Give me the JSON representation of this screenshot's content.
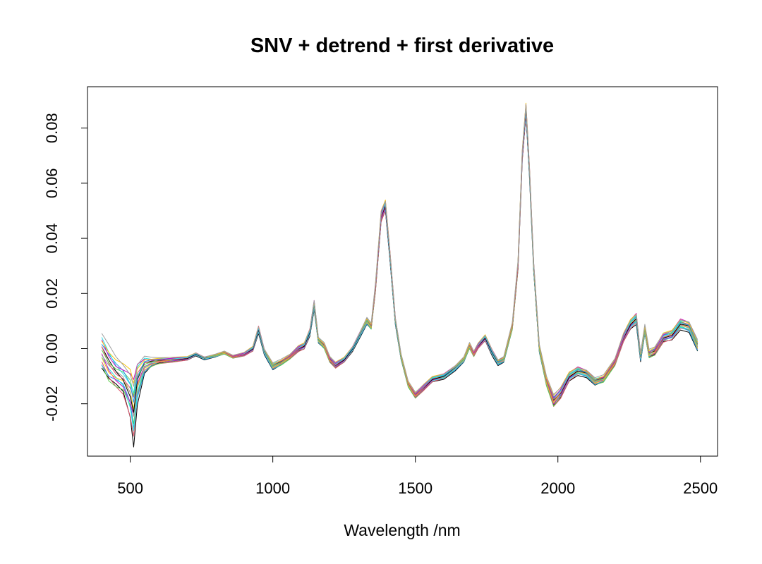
{
  "chart_data": {
    "type": "line",
    "title": "SNV + detrend + first derivative",
    "xlabel": "Wavelength /nm",
    "ylabel": "",
    "xlim": [
      350,
      2560
    ],
    "ylim": [
      -0.039,
      0.095
    ],
    "xticks": [
      {
        "value": 500,
        "label": "500"
      },
      {
        "value": 1000,
        "label": "1000"
      },
      {
        "value": 1500,
        "label": "1500"
      },
      {
        "value": 2000,
        "label": "2000"
      },
      {
        "value": 2500,
        "label": "2500"
      }
    ],
    "yticks": [
      {
        "value": -0.02,
        "label": "-0.02"
      },
      {
        "value": 0.0,
        "label": "0.00"
      },
      {
        "value": 0.02,
        "label": "0.02"
      },
      {
        "value": 0.04,
        "label": "0.04"
      },
      {
        "value": 0.06,
        "label": "0.06"
      },
      {
        "value": 0.08,
        "label": "0.08"
      }
    ],
    "grid": false,
    "series_colors": [
      "#000000",
      "#df536b",
      "#61d04f",
      "#2297e6",
      "#28e2e5",
      "#cd0bbc",
      "#f5c710",
      "#9e9e9e"
    ],
    "series_count": 16,
    "x": [
      400,
      425,
      450,
      475,
      500,
      512,
      525,
      550,
      575,
      600,
      650,
      700,
      730,
      760,
      800,
      830,
      860,
      900,
      930,
      950,
      970,
      1000,
      1030,
      1060,
      1090,
      1110,
      1130,
      1145,
      1160,
      1180,
      1200,
      1220,
      1250,
      1280,
      1310,
      1330,
      1345,
      1360,
      1380,
      1395,
      1410,
      1430,
      1450,
      1475,
      1500,
      1530,
      1560,
      1600,
      1640,
      1670,
      1690,
      1705,
      1720,
      1745,
      1770,
      1790,
      1810,
      1840,
      1860,
      1875,
      1888,
      1900,
      1915,
      1935,
      1960,
      1985,
      2010,
      2040,
      2070,
      2100,
      2130,
      2160,
      2200,
      2230,
      2255,
      2275,
      2290,
      2305,
      2320,
      2340,
      2370,
      2400,
      2430,
      2460,
      2490
    ],
    "mean_y": [
      -0.001,
      -0.006,
      -0.009,
      -0.011,
      -0.016,
      -0.022,
      -0.012,
      -0.006,
      -0.005,
      -0.0045,
      -0.004,
      -0.0035,
      -0.002,
      -0.0035,
      -0.0025,
      -0.0015,
      -0.003,
      -0.002,
      0.0,
      0.007,
      -0.001,
      -0.0065,
      -0.005,
      -0.003,
      0.0,
      0.001,
      0.006,
      0.016,
      0.003,
      0.001,
      -0.004,
      -0.006,
      -0.004,
      0.0,
      0.006,
      0.01,
      0.008,
      0.022,
      0.048,
      0.052,
      0.035,
      0.01,
      -0.003,
      -0.013,
      -0.017,
      -0.014,
      -0.011,
      -0.01,
      -0.007,
      -0.004,
      0.001,
      -0.002,
      0.001,
      0.004,
      -0.0015,
      -0.005,
      -0.004,
      0.008,
      0.03,
      0.07,
      0.087,
      0.065,
      0.03,
      0.0,
      -0.012,
      -0.019,
      -0.016,
      -0.01,
      -0.008,
      -0.009,
      -0.012,
      -0.011,
      -0.005,
      0.004,
      0.009,
      0.011,
      -0.003,
      0.007,
      -0.002,
      -0.001,
      0.004,
      0.005,
      0.009,
      0.008,
      0.001
    ],
    "spread": [
      0.006,
      0.006,
      0.005,
      0.005,
      0.008,
      0.011,
      0.007,
      0.003,
      0.0015,
      0.001,
      0.0008,
      0.0006,
      0.0005,
      0.0005,
      0.0005,
      0.0005,
      0.0005,
      0.0006,
      0.0008,
      0.0012,
      0.001,
      0.0012,
      0.001,
      0.0008,
      0.001,
      0.001,
      0.0012,
      0.0016,
      0.001,
      0.001,
      0.001,
      0.001,
      0.0008,
      0.0008,
      0.001,
      0.0012,
      0.001,
      0.0014,
      0.0018,
      0.0018,
      0.0016,
      0.0012,
      0.001,
      0.001,
      0.001,
      0.001,
      0.0009,
      0.0009,
      0.0009,
      0.0009,
      0.001,
      0.0009,
      0.0009,
      0.001,
      0.001,
      0.001,
      0.001,
      0.0012,
      0.0016,
      0.0018,
      0.002,
      0.0018,
      0.0016,
      0.0014,
      0.0016,
      0.002,
      0.0018,
      0.0015,
      0.0014,
      0.0013,
      0.0013,
      0.0012,
      0.0012,
      0.0014,
      0.0016,
      0.0018,
      0.0015,
      0.0016,
      0.0014,
      0.0014,
      0.0015,
      0.0016,
      0.0018,
      0.0018,
      0.002
    ]
  }
}
